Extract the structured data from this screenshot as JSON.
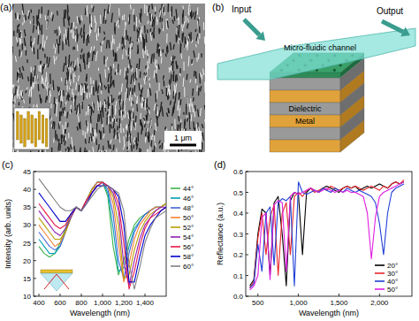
{
  "panel_a": {
    "label": "(a)",
    "scale_bar": "1 μm"
  },
  "panel_b": {
    "label": "(b)",
    "input": "Input",
    "output": "Output",
    "channel": "Micro-fluidic channel",
    "layers": {
      "dielectric": "Dielectric",
      "metal": "Metal"
    }
  },
  "chart_data": [
    {
      "type": "line",
      "title": "(c)",
      "x_label": "Wavelength (nm)",
      "y_label": "Intensity (arb. units)",
      "x": [
        400,
        450,
        500,
        550,
        600,
        650,
        700,
        750,
        800,
        850,
        900,
        950,
        1000,
        1050,
        1100,
        1150,
        1200,
        1250,
        1300,
        1350,
        1400,
        1450,
        1500,
        1550,
        1600
      ],
      "xlim": [
        350,
        1600
      ],
      "xticks": [
        400,
        600,
        800,
        {
          "value": 1000,
          "label": "1,000"
        },
        {
          "value": 1200,
          "label": "1,200"
        },
        {
          "value": 1400,
          "label": "1,400"
        }
      ],
      "ylim": [
        10,
        45
      ],
      "yticks": [
        10,
        15,
        20,
        25,
        30,
        35,
        40,
        45
      ],
      "legend": "right",
      "series": [
        {
          "name": "44°",
          "color": "#3cb44b",
          "values": [
            24,
            22,
            21,
            22,
            25,
            29,
            33,
            35,
            34,
            37,
            40,
            42,
            42,
            38,
            24,
            16,
            20,
            26,
            30,
            32,
            33,
            34,
            35,
            35,
            36
          ]
        },
        {
          "name": "46°",
          "color": "#00a0b0",
          "values": [
            26,
            24,
            22,
            22,
            24,
            28,
            32,
            35,
            34,
            37,
            40,
            42,
            42,
            39,
            29,
            17,
            18,
            24,
            29,
            31,
            33,
            34,
            35,
            35,
            36
          ]
        },
        {
          "name": "48°",
          "color": "#4363d8",
          "values": [
            28,
            26,
            24,
            23,
            24,
            28,
            32,
            35,
            34,
            37,
            40,
            42,
            42,
            40,
            33,
            20,
            15,
            22,
            28,
            31,
            33,
            34,
            35,
            35,
            36
          ]
        },
        {
          "name": "50°",
          "color": "#f58231",
          "values": [
            30,
            28,
            26,
            24,
            25,
            28,
            32,
            35,
            34,
            37,
            40,
            42,
            42,
            41,
            36,
            25,
            14,
            19,
            26,
            30,
            32,
            34,
            35,
            35,
            36
          ]
        },
        {
          "name": "52°",
          "color": "#b8a000",
          "values": [
            32,
            30,
            28,
            26,
            26,
            28,
            32,
            35,
            34,
            37,
            40,
            41,
            42,
            41,
            38,
            30,
            15,
            16,
            23,
            28,
            31,
            33,
            34,
            35,
            36
          ]
        },
        {
          "name": "54°",
          "color": "#911eb4",
          "values": [
            34,
            32,
            30,
            28,
            27,
            29,
            32,
            35,
            34,
            37,
            39,
            41,
            42,
            41,
            39,
            34,
            19,
            13,
            20,
            26,
            30,
            32,
            34,
            35,
            35
          ]
        },
        {
          "name": "56°",
          "color": "#e6194b",
          "values": [
            36,
            34,
            32,
            30,
            29,
            30,
            33,
            35,
            34,
            37,
            39,
            41,
            42,
            41,
            40,
            36,
            25,
            12,
            17,
            24,
            29,
            32,
            33,
            34,
            35
          ]
        },
        {
          "name": "58°",
          "color": "#0000cd",
          "values": [
            39,
            37,
            35,
            33,
            31,
            31,
            33,
            35,
            34,
            36,
            39,
            41,
            41,
            41,
            40,
            38,
            30,
            14,
            14,
            21,
            27,
            30,
            32,
            34,
            35
          ]
        },
        {
          "name": "60°",
          "color": "#808080",
          "values": [
            43,
            41,
            39,
            37,
            35,
            34,
            34,
            35,
            34,
            36,
            38,
            40,
            41,
            41,
            40,
            39,
            34,
            19,
            12,
            18,
            25,
            29,
            32,
            33,
            34
          ]
        }
      ]
    },
    {
      "type": "line",
      "title": "(d)",
      "x_label": "Wavelength (nm)",
      "y_label": "Reflectance (a.u.)",
      "x": [
        400,
        450,
        500,
        550,
        600,
        650,
        700,
        750,
        800,
        850,
        900,
        950,
        1000,
        1050,
        1100,
        1150,
        1200,
        1250,
        1300,
        1350,
        1400,
        1450,
        1500,
        1550,
        1600,
        1650,
        1700,
        1750,
        1800,
        1850,
        1900,
        1950,
        2000,
        2050,
        2100,
        2150,
        2200,
        2250,
        2300
      ],
      "xlim": [
        350,
        2400
      ],
      "xticks": [
        500,
        {
          "value": 1000,
          "label": "1,000"
        },
        {
          "value": 1500,
          "label": "1,500"
        },
        {
          "value": 2000,
          "label": "2,000"
        }
      ],
      "ylim": [
        0,
        0.6
      ],
      "yticks": [
        {
          "value": 0,
          "label": "0.0"
        },
        0.1,
        0.2,
        0.3,
        0.4,
        0.5,
        0.6
      ],
      "legend": "lower right",
      "series": [
        {
          "name": "20°",
          "color": "#000000",
          "values": [
            0.05,
            0.08,
            0.3,
            0.42,
            0.4,
            0.1,
            0.45,
            0.48,
            0.3,
            0.05,
            0.46,
            0.5,
            0.49,
            0.2,
            0.5,
            0.52,
            0.51,
            0.5,
            0.52,
            0.53,
            0.52,
            0.51,
            0.5,
            0.52,
            0.53,
            0.52,
            0.53,
            0.51,
            0.52,
            0.53,
            0.52,
            0.53,
            0.54,
            0.53,
            0.52,
            0.54,
            0.55,
            0.54,
            0.55
          ]
        },
        {
          "name": "30°",
          "color": "#e8262b",
          "values": [
            0.04,
            0.07,
            0.28,
            0.4,
            0.2,
            0.38,
            0.44,
            0.1,
            0.4,
            0.45,
            0.2,
            0.48,
            0.5,
            0.48,
            0.51,
            0.52,
            0.5,
            0.51,
            0.52,
            0.51,
            0.53,
            0.52,
            0.51,
            0.52,
            0.53,
            0.52,
            0.53,
            0.52,
            0.51,
            0.52,
            0.53,
            0.52,
            0.51,
            0.53,
            0.52,
            0.54,
            0.55,
            0.54,
            0.56
          ]
        },
        {
          "name": "40°",
          "color": "#1f3fd6",
          "values": [
            0.04,
            0.06,
            0.25,
            0.12,
            0.4,
            0.43,
            0.15,
            0.45,
            0.47,
            0.46,
            0.48,
            0.05,
            0.55,
            0.5,
            0.49,
            0.5,
            0.51,
            0.5,
            0.52,
            0.51,
            0.5,
            0.52,
            0.51,
            0.5,
            0.52,
            0.51,
            0.5,
            0.51,
            0.5,
            0.49,
            0.48,
            0.45,
            0.35,
            0.2,
            0.4,
            0.5,
            0.52,
            0.53,
            0.54
          ]
        },
        {
          "name": "50°",
          "color": "#e01ee0",
          "values": [
            0.03,
            0.05,
            0.1,
            0.38,
            0.4,
            0.08,
            0.44,
            0.46,
            0.45,
            0.12,
            0.48,
            0.5,
            0.49,
            0.5,
            0.51,
            0.52,
            0.51,
            0.5,
            0.51,
            0.52,
            0.51,
            0.5,
            0.51,
            0.5,
            0.51,
            0.5,
            0.5,
            0.49,
            0.48,
            0.4,
            0.18,
            0.38,
            0.48,
            0.5,
            0.51,
            0.52,
            0.53,
            0.54,
            0.55
          ]
        }
      ]
    }
  ]
}
